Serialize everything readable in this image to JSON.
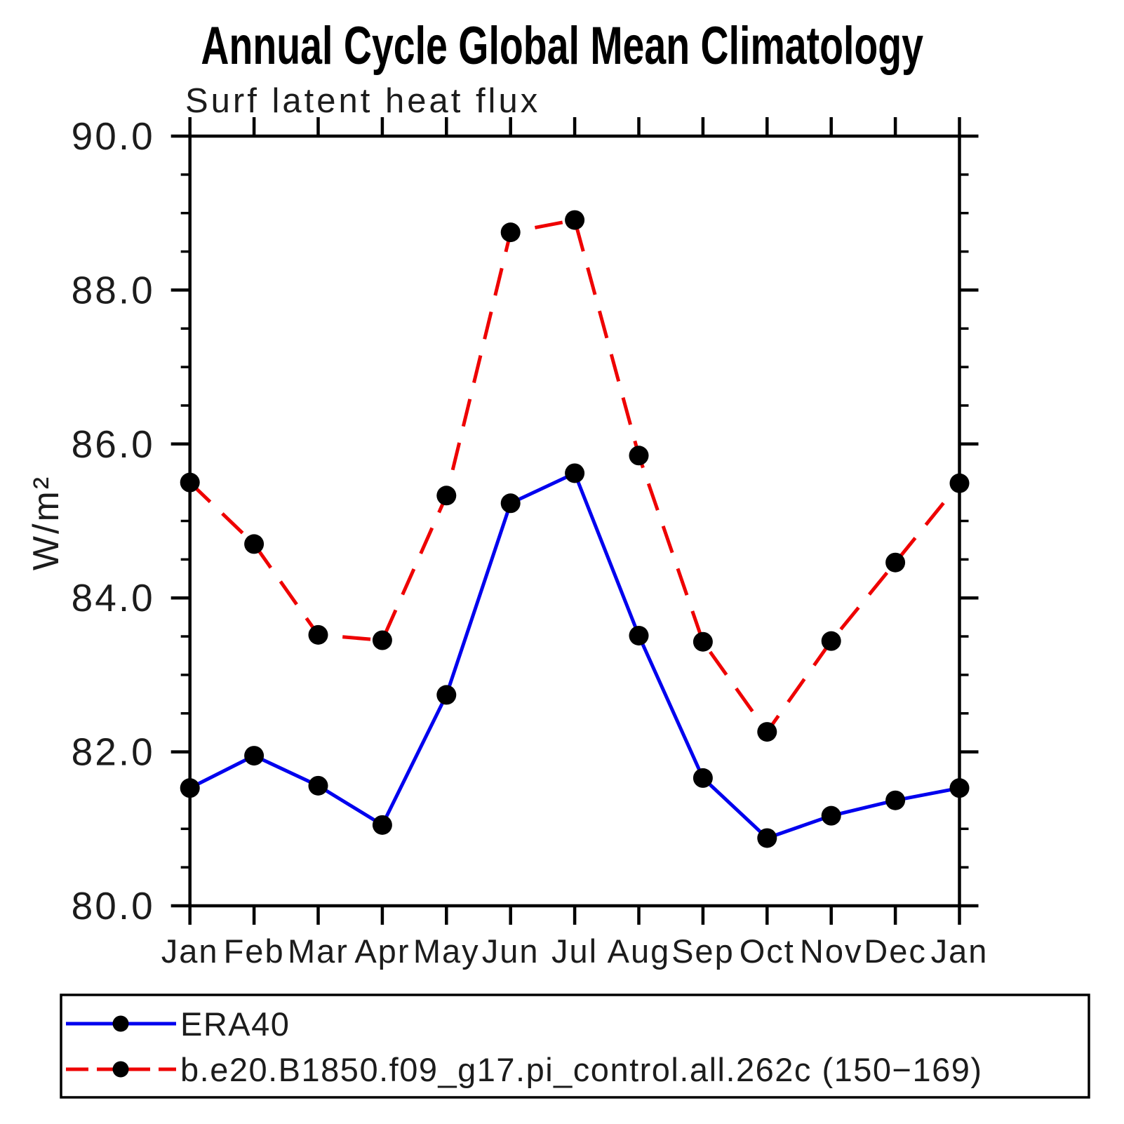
{
  "header": {
    "title": "Annual Cycle Global Mean Climatology",
    "subtitle": "Surf latent heat flux"
  },
  "chart_data": {
    "type": "line",
    "title": "Annual Cycle Global Mean Climatology",
    "subtitle": "Surf latent heat flux",
    "xlabel": "",
    "ylabel": "W/m²",
    "categories": [
      "Jan",
      "Feb",
      "Mar",
      "Apr",
      "May",
      "Jun",
      "Jul",
      "Aug",
      "Sep",
      "Oct",
      "Nov",
      "Dec",
      "Jan"
    ],
    "series": [
      {
        "name": "ERA40",
        "color": "#0000ee",
        "line_style": "solid",
        "marker": "black-dot",
        "values": [
          81.53,
          81.95,
          81.56,
          81.05,
          82.74,
          85.23,
          85.62,
          83.51,
          81.66,
          80.88,
          81.17,
          81.37,
          81.53
        ]
      },
      {
        "name": "b.e20.B1850.f09_g17.pi_control.all.262c (150−169)",
        "color": "#ee0000",
        "line_style": "dashed",
        "marker": "black-dot",
        "values": [
          85.5,
          84.7,
          83.52,
          83.45,
          85.33,
          88.75,
          88.91,
          85.85,
          83.43,
          82.26,
          83.44,
          84.46,
          85.49
        ]
      }
    ],
    "ylim": [
      80.0,
      90.0
    ],
    "ytick_major_step": 2.0,
    "ytick_minor_step": 0.5,
    "ytick_labels": [
      "80.0",
      "82.0",
      "84.0",
      "86.0",
      "88.0",
      "90.0"
    ],
    "grid": "off",
    "legend_position": "bottom-box",
    "marker_color": "#000000",
    "axis_color": "#000000"
  }
}
